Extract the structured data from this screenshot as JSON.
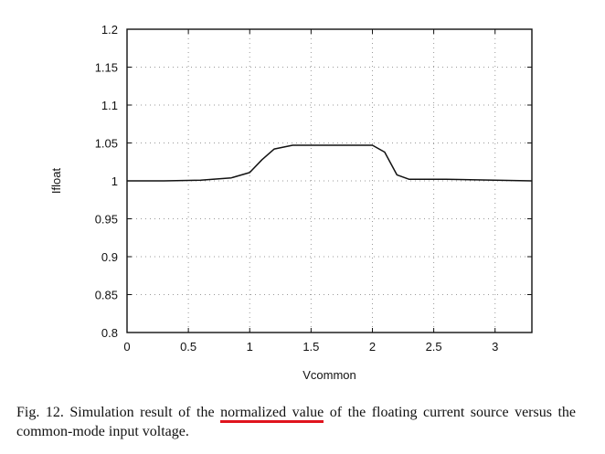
{
  "chart_data": {
    "type": "line",
    "title": "",
    "xlabel": "Vcommon",
    "ylabel": "Ifloat",
    "xlim": [
      0,
      3.3
    ],
    "ylim": [
      0.8,
      1.2
    ],
    "grid": true,
    "x_ticks": [
      0,
      0.5,
      1,
      1.5,
      2,
      2.5,
      3
    ],
    "x_tick_labels": [
      "0",
      "0.5",
      "1",
      "1.5",
      "2",
      "2.5",
      "3"
    ],
    "y_ticks": [
      0.8,
      0.85,
      0.9,
      0.95,
      1,
      1.05,
      1.1,
      1.15,
      1.2
    ],
    "y_tick_labels": [
      "0.8",
      "0.85",
      "0.9",
      "0.95",
      "1",
      "1.05",
      "1.1",
      "1.15",
      "1.2"
    ],
    "series": [
      {
        "name": "Ifloat",
        "x": [
          0,
          0.3,
          0.6,
          0.85,
          1.0,
          1.1,
          1.2,
          1.35,
          1.6,
          1.8,
          2.0,
          2.1,
          2.2,
          2.3,
          2.6,
          3.0,
          3.3
        ],
        "y": [
          1.0,
          1.0,
          1.001,
          1.004,
          1.011,
          1.028,
          1.042,
          1.047,
          1.047,
          1.047,
          1.047,
          1.038,
          1.008,
          1.002,
          1.002,
          1.001,
          1.0
        ]
      }
    ]
  },
  "caption": {
    "lead": "Fig. 12.   Simulation result of the",
    "highlight": "normalized value",
    "rest": "of the floating current source versus the common-mode input voltage."
  },
  "colors": {
    "line": "#111111",
    "grid": "#9a9a9a",
    "highlight_underline": "#e0141e"
  }
}
